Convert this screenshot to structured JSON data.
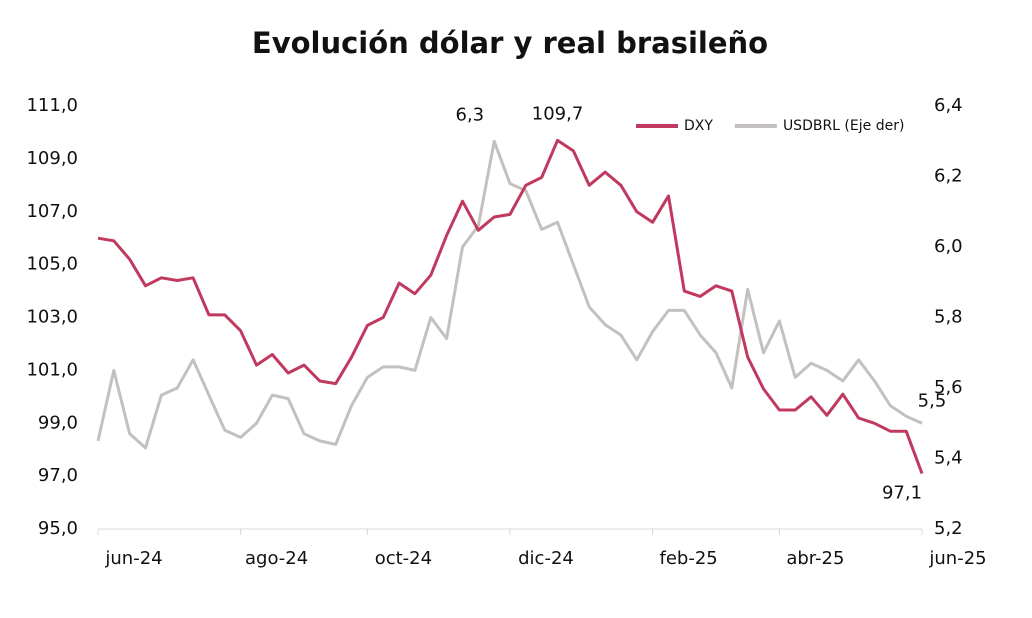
{
  "chart_data": {
    "type": "line",
    "title": "Evolución dólar y real brasileño",
    "categories": [
      "jun-24",
      null,
      null,
      null,
      null,
      null,
      null,
      null,
      null,
      "ago-24",
      null,
      null,
      null,
      null,
      null,
      null,
      null,
      "oct-24",
      null,
      null,
      null,
      null,
      null,
      null,
      null,
      null,
      "dic-24",
      null,
      null,
      null,
      null,
      null,
      null,
      null,
      null,
      "feb-25",
      null,
      null,
      null,
      null,
      null,
      null,
      null,
      "abr-25",
      null,
      null,
      null,
      null,
      null,
      null,
      null,
      null,
      "jun-25"
    ],
    "series": [
      {
        "name": "DXY",
        "color": "#c0395e",
        "values": [
          106.0,
          105.9,
          105.2,
          104.2,
          104.5,
          104.4,
          104.5,
          103.1,
          103.1,
          102.5,
          101.2,
          101.6,
          100.9,
          101.2,
          100.6,
          100.5,
          101.5,
          102.7,
          103.0,
          104.3,
          103.9,
          104.6,
          106.1,
          107.4,
          106.3,
          106.8,
          106.9,
          108.0,
          108.3,
          109.7,
          109.3,
          108.0,
          108.5,
          108.0,
          107.0,
          106.6,
          107.6,
          104.0,
          103.8,
          104.2,
          104.0,
          101.5,
          100.3,
          99.5,
          99.5,
          100.0,
          99.3,
          100.1,
          99.2,
          99.0,
          98.7,
          98.7,
          97.1
        ],
        "value_labels": [
          null,
          null,
          null,
          null,
          null,
          null,
          null,
          null,
          null,
          null,
          null,
          null,
          null,
          null,
          null,
          null,
          null,
          null,
          null,
          null,
          null,
          null,
          null,
          null,
          null,
          null,
          null,
          null,
          null,
          "109,7",
          null,
          null,
          null,
          null,
          null,
          null,
          null,
          null,
          null,
          null,
          null,
          null,
          null,
          null,
          null,
          null,
          null,
          null,
          null,
          null,
          null,
          null,
          "97,1"
        ]
      },
      {
        "name": "USDBRL (Eje der)",
        "color": "#c4c0c0",
        "axis": "y2",
        "values": [
          5.45,
          5.65,
          5.47,
          5.43,
          5.58,
          5.6,
          5.68,
          5.58,
          5.48,
          5.46,
          5.5,
          5.58,
          5.57,
          5.47,
          5.45,
          5.44,
          5.55,
          5.63,
          5.66,
          5.66,
          5.65,
          5.8,
          5.74,
          6.0,
          6.06,
          6.3,
          6.18,
          6.16,
          6.05,
          6.07,
          5.95,
          5.83,
          5.78,
          5.75,
          5.68,
          5.76,
          5.82,
          5.82,
          5.75,
          5.7,
          5.6,
          5.88,
          5.7,
          5.79,
          5.63,
          5.67,
          5.65,
          5.62,
          5.68,
          5.62,
          5.55,
          5.52,
          5.5
        ],
        "value_labels": [
          null,
          null,
          null,
          null,
          null,
          null,
          null,
          null,
          null,
          null,
          null,
          null,
          null,
          null,
          null,
          null,
          null,
          null,
          null,
          null,
          null,
          null,
          null,
          null,
          null,
          "6,3",
          null,
          null,
          null,
          null,
          null,
          null,
          null,
          null,
          null,
          null,
          null,
          null,
          null,
          null,
          null,
          null,
          null,
          null,
          null,
          null,
          null,
          null,
          null,
          null,
          null,
          null,
          "5,5"
        ]
      }
    ],
    "ylim": [
      95,
      111
    ],
    "yticks": [
      {
        "value": 95,
        "label": "95,0"
      },
      {
        "value": 97,
        "label": "97,0"
      },
      {
        "value": 99,
        "label": "99,0"
      },
      {
        "value": 101,
        "label": "101,0"
      },
      {
        "value": 103,
        "label": "103,0"
      },
      {
        "value": 105,
        "label": "105,0"
      },
      {
        "value": 107,
        "label": "107,0"
      },
      {
        "value": 109,
        "label": "109,0"
      },
      {
        "value": 111,
        "label": "111,0"
      }
    ],
    "y2lim": [
      5.2,
      6.4
    ],
    "y2ticks": [
      {
        "value": 5.2,
        "label": "5,2"
      },
      {
        "value": 5.4,
        "label": "5,4"
      },
      {
        "value": 5.6,
        "label": "5,6"
      },
      {
        "value": 5.8,
        "label": "5,8"
      },
      {
        "value": 6.0,
        "label": "6,0"
      },
      {
        "value": 6.2,
        "label": "6,2"
      },
      {
        "value": 6.4,
        "label": "6,4"
      }
    ],
    "legend": "top-right",
    "grid": false
  }
}
